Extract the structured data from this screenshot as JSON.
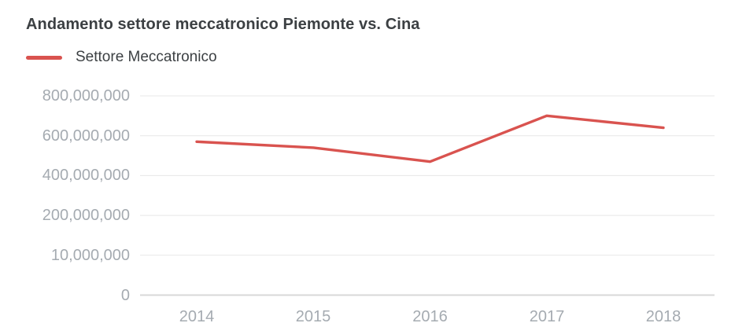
{
  "title": "Andamento settore meccatronico Piemonte vs. Cina",
  "legend": {
    "label": "Settore Meccatronico",
    "color": "#d9534f"
  },
  "colors": {
    "accent": "#d9534f",
    "text": "#3c4043",
    "axis": "#a5abb1",
    "grid": "#e7e7e7",
    "baseline": "#d8d8d8",
    "bg": "#ffffff"
  },
  "chart_data": {
    "type": "line",
    "title": "Andamento settore meccatronico Piemonte vs. Cina",
    "categories": [
      "2014",
      "2015",
      "2016",
      "2017",
      "2018"
    ],
    "series": [
      {
        "name": "Settore Meccatronico",
        "color": "#d9534f",
        "values": [
          570000000,
          540000000,
          470000000,
          700000000,
          640000000
        ]
      }
    ],
    "xtick_labels": [
      "2014",
      "2015",
      "2016",
      "2017",
      "2018"
    ],
    "ytick_labels": [
      "800,000,000",
      "600,000,000",
      "400,000,000",
      "200,000,000",
      "10,000,000",
      "0"
    ],
    "ytick_values": [
      800000000,
      600000000,
      400000000,
      200000000,
      10000000,
      0
    ],
    "ylim_top_label": "800,000,000",
    "xlabel": "",
    "ylabel": "",
    "grid": true,
    "legend_position": "top-left"
  }
}
